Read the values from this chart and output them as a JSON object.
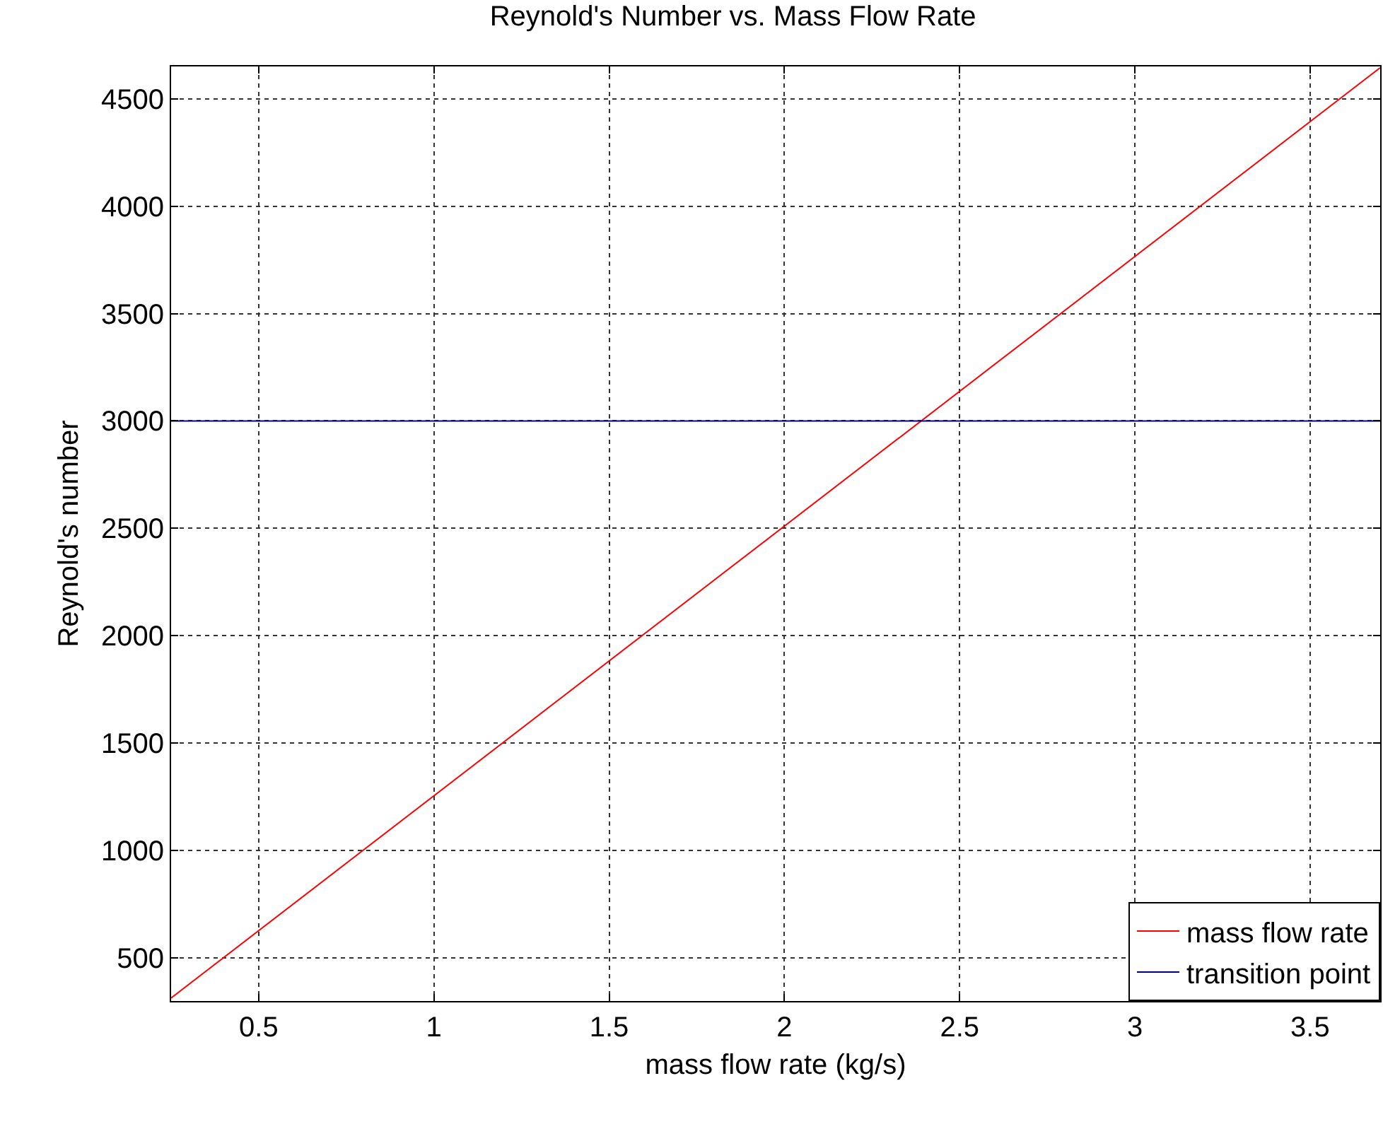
{
  "chart_data": {
    "type": "line",
    "title": "Reynold's Number vs. Mass Flow Rate",
    "xlabel": "mass flow rate (kg/s)",
    "ylabel": "Reynold's number",
    "series": [
      {
        "name": "mass flow rate",
        "color": "#ff0000",
        "values": [
          314,
          4644
        ]
      },
      {
        "name": "transition point",
        "color": "#000080",
        "values": [
          3000,
          3000
        ]
      }
    ],
    "x": [
      0.25,
      3.7
    ],
    "xlim": [
      0.25,
      3.7
    ],
    "xticks": [
      0.5,
      1,
      1.5,
      2,
      2.5,
      3,
      3.5
    ],
    "ylim": [
      300,
      4650
    ],
    "yticks": [
      500,
      1000,
      1500,
      2000,
      2500,
      3000,
      3500,
      4000,
      4500
    ],
    "grid": true,
    "legend": "bottom right",
    "marker": "none",
    "line_style": "solid"
  }
}
